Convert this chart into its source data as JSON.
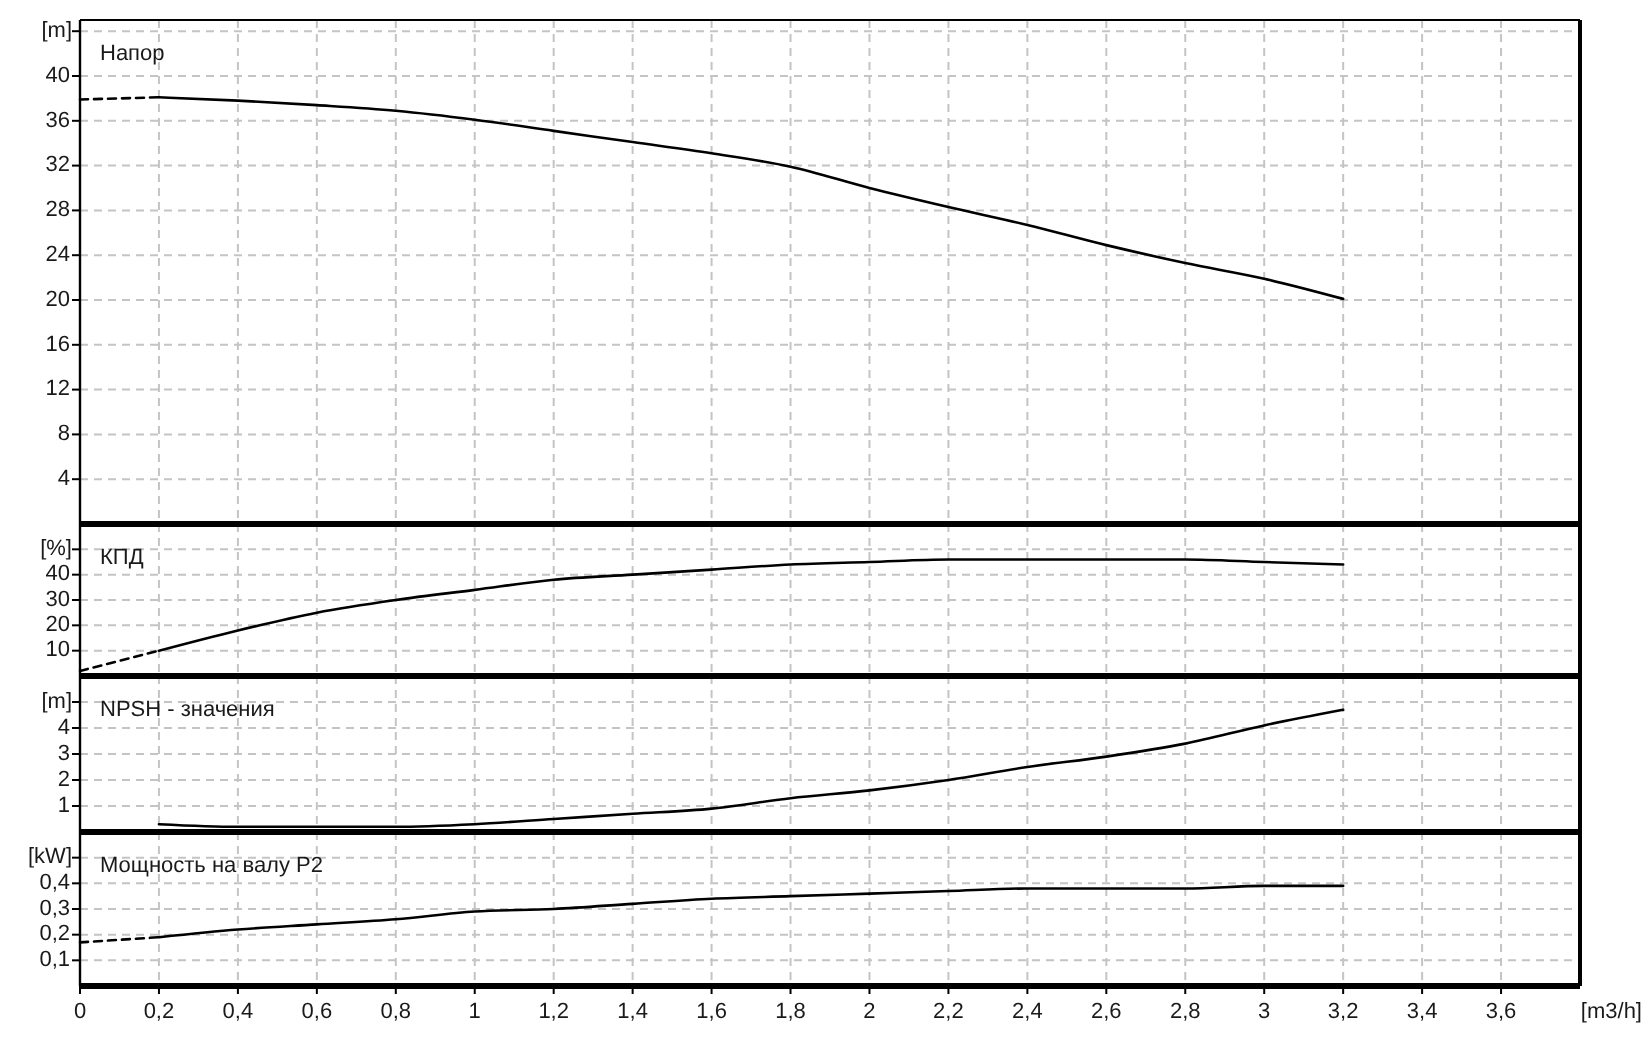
{
  "chart_data": [
    {
      "type": "line",
      "title": "Напор",
      "ylabel": "[m]",
      "xlim": [
        0,
        3.8
      ],
      "xticks": [
        {
          "value": 0,
          "label": null
        },
        {
          "value": 0.2,
          "label": null
        },
        {
          "value": 0.4,
          "label": null
        },
        {
          "value": 0.6,
          "label": null
        },
        {
          "value": 0.8,
          "label": null
        },
        {
          "value": 1,
          "label": null
        },
        {
          "value": 1.2,
          "label": null
        },
        {
          "value": 1.4,
          "label": null
        },
        {
          "value": 1.6,
          "label": null
        },
        {
          "value": 1.8,
          "label": null
        },
        {
          "value": 2,
          "label": null
        },
        {
          "value": 2.2,
          "label": null
        },
        {
          "value": 2.4,
          "label": null
        },
        {
          "value": 2.6,
          "label": null
        },
        {
          "value": 2.8,
          "label": null
        },
        {
          "value": 3,
          "label": null
        },
        {
          "value": 3.2,
          "label": null
        },
        {
          "value": 3.4,
          "label": null
        },
        {
          "value": 3.6,
          "label": null
        }
      ],
      "ylim": [
        0,
        45
      ],
      "yticks": [
        4,
        8,
        12,
        16,
        20,
        24,
        28,
        32,
        36,
        40,
        {
          "value": 44,
          "label": null
        }
      ],
      "grid": true,
      "tick_labels": "y",
      "series": [
        {
          "color": "#000000",
          "line_style": "dashed",
          "x": [
            0,
            0.2
          ],
          "values": [
            37.9,
            38.1
          ]
        },
        {
          "color": "#000000",
          "line_style": "solid",
          "x": [
            0.2,
            0.4,
            0.6,
            0.8,
            1,
            1.2,
            1.4,
            1.6,
            1.8,
            2,
            2.2,
            2.4,
            2.6,
            2.8,
            3,
            3.2
          ],
          "values": [
            38.1,
            37.8,
            37.4,
            36.9,
            36.1,
            35.1,
            34.1,
            33.1,
            31.9,
            30.0,
            28.3,
            26.7,
            24.9,
            23.3,
            21.9,
            20.1
          ]
        }
      ]
    },
    {
      "type": "line",
      "title": "КПД",
      "ylabel": "[%]",
      "xlim": [
        0,
        3.8
      ],
      "xticks": [
        {
          "value": 0,
          "label": null
        },
        {
          "value": 0.2,
          "label": null
        },
        {
          "value": 0.4,
          "label": null
        },
        {
          "value": 0.6,
          "label": null
        },
        {
          "value": 0.8,
          "label": null
        },
        {
          "value": 1,
          "label": null
        },
        {
          "value": 1.2,
          "label": null
        },
        {
          "value": 1.4,
          "label": null
        },
        {
          "value": 1.6,
          "label": null
        },
        {
          "value": 1.8,
          "label": null
        },
        {
          "value": 2,
          "label": null
        },
        {
          "value": 2.2,
          "label": null
        },
        {
          "value": 2.4,
          "label": null
        },
        {
          "value": 2.6,
          "label": null
        },
        {
          "value": 2.8,
          "label": null
        },
        {
          "value": 3,
          "label": null
        },
        {
          "value": 3.2,
          "label": null
        },
        {
          "value": 3.4,
          "label": null
        },
        {
          "value": 3.6,
          "label": null
        }
      ],
      "ylim": [
        0,
        60
      ],
      "yticks": [
        10,
        20,
        30,
        40,
        {
          "value": 50,
          "label": null
        }
      ],
      "grid": true,
      "tick_labels": "y",
      "series": [
        {
          "color": "#000000",
          "line_style": "dashed",
          "x": [
            0,
            0.2
          ],
          "values": [
            2,
            10
          ]
        },
        {
          "color": "#000000",
          "line_style": "solid",
          "x": [
            0.2,
            0.4,
            0.6,
            0.8,
            1,
            1.2,
            1.4,
            1.6,
            1.8,
            2,
            2.2,
            2.4,
            2.6,
            2.8,
            3,
            3.2
          ],
          "values": [
            10,
            18,
            25,
            30,
            34,
            38,
            40,
            42,
            44,
            45,
            46,
            46,
            46,
            46,
            45,
            44
          ]
        }
      ]
    },
    {
      "type": "line",
      "title": "NPSH - значения",
      "ylabel": "[m]",
      "xlim": [
        0,
        3.8
      ],
      "xticks": [
        {
          "value": 0,
          "label": null
        },
        {
          "value": 0.2,
          "label": null
        },
        {
          "value": 0.4,
          "label": null
        },
        {
          "value": 0.6,
          "label": null
        },
        {
          "value": 0.8,
          "label": null
        },
        {
          "value": 1,
          "label": null
        },
        {
          "value": 1.2,
          "label": null
        },
        {
          "value": 1.4,
          "label": null
        },
        {
          "value": 1.6,
          "label": null
        },
        {
          "value": 1.8,
          "label": null
        },
        {
          "value": 2,
          "label": null
        },
        {
          "value": 2.2,
          "label": null
        },
        {
          "value": 2.4,
          "label": null
        },
        {
          "value": 2.6,
          "label": null
        },
        {
          "value": 2.8,
          "label": null
        },
        {
          "value": 3,
          "label": null
        },
        {
          "value": 3.2,
          "label": null
        },
        {
          "value": 3.4,
          "label": null
        },
        {
          "value": 3.6,
          "label": null
        }
      ],
      "ylim": [
        0,
        6
      ],
      "yticks": [
        1,
        2,
        3,
        4,
        {
          "value": 5,
          "label": null
        }
      ],
      "grid": true,
      "tick_labels": "y",
      "series": [
        {
          "color": "#000000",
          "line_style": "solid",
          "x": [
            0.2,
            0.4,
            0.6,
            0.8,
            1,
            1.2,
            1.4,
            1.6,
            1.8,
            2,
            2.2,
            2.4,
            2.6,
            2.8,
            3,
            3.2
          ],
          "values": [
            0.3,
            0.2,
            0.2,
            0.2,
            0.3,
            0.5,
            0.7,
            0.9,
            1.3,
            1.6,
            2.0,
            2.5,
            2.9,
            3.4,
            4.1,
            4.7
          ]
        }
      ]
    },
    {
      "type": "line",
      "title": "Мощность на валу P2",
      "xlabel": "[m3/h]",
      "ylabel": "[kW]",
      "xlim": [
        0,
        3.8
      ],
      "xticks": [
        0,
        {
          "value": 0.2,
          "label": "0,2"
        },
        {
          "value": 0.4,
          "label": "0,4"
        },
        {
          "value": 0.6,
          "label": "0,6"
        },
        {
          "value": 0.8,
          "label": "0,8"
        },
        1,
        {
          "value": 1.2,
          "label": "1,2"
        },
        {
          "value": 1.4,
          "label": "1,4"
        },
        {
          "value": 1.6,
          "label": "1,6"
        },
        {
          "value": 1.8,
          "label": "1,8"
        },
        2,
        {
          "value": 2.2,
          "label": "2,2"
        },
        {
          "value": 2.4,
          "label": "2,4"
        },
        {
          "value": 2.6,
          "label": "2,6"
        },
        {
          "value": 2.8,
          "label": "2,8"
        },
        3,
        {
          "value": 3.2,
          "label": "3,2"
        },
        {
          "value": 3.4,
          "label": "3,4"
        },
        {
          "value": 3.6,
          "label": "3,6"
        }
      ],
      "ylim": [
        0,
        0.6
      ],
      "yticks": [
        {
          "value": 0.1,
          "label": "0,1"
        },
        {
          "value": 0.2,
          "label": "0,2"
        },
        {
          "value": 0.3,
          "label": "0,3"
        },
        {
          "value": 0.4,
          "label": "0,4"
        },
        {
          "value": 0.5,
          "label": null
        }
      ],
      "grid": true,
      "series": [
        {
          "color": "#000000",
          "line_style": "dashed",
          "x": [
            0,
            0.2
          ],
          "values": [
            0.17,
            0.19
          ]
        },
        {
          "color": "#000000",
          "line_style": "solid",
          "x": [
            0.2,
            0.4,
            0.6,
            0.8,
            1,
            1.2,
            1.4,
            1.6,
            1.8,
            2,
            2.2,
            2.4,
            2.6,
            2.8,
            3,
            3.2
          ],
          "values": [
            0.19,
            0.22,
            0.24,
            0.26,
            0.29,
            0.3,
            0.32,
            0.34,
            0.35,
            0.36,
            0.37,
            0.38,
            0.38,
            0.38,
            0.39,
            0.39
          ]
        }
      ]
    }
  ]
}
